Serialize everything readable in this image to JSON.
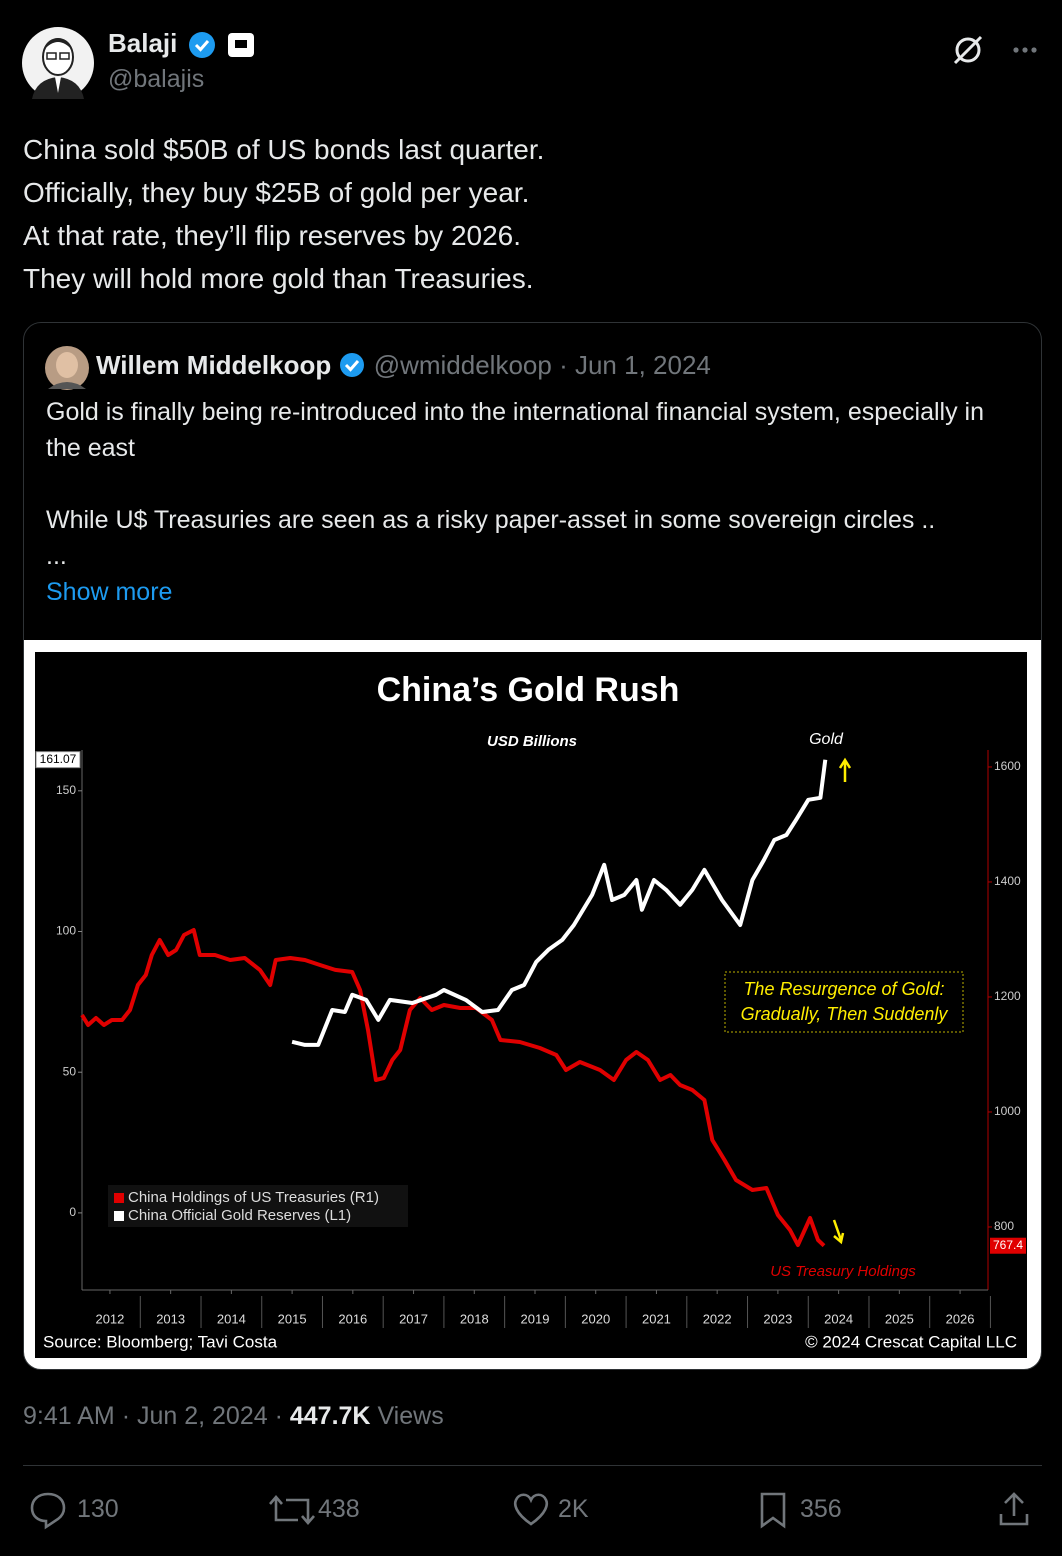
{
  "tweet": {
    "author": "Balaji",
    "handle": "@balajis",
    "text": [
      "China sold $50B of US bonds last quarter.",
      "Officially, they buy $25B of gold per year.",
      "At that rate, they’ll flip reserves by 2026.",
      "They will hold more gold than Treasuries."
    ],
    "time": "9:41 AM",
    "separator": "·",
    "date": "Jun 2, 2024",
    "views": "447.7K",
    "views_label": "Views",
    "replies": "130",
    "reposts": "438",
    "likes": "2K",
    "bookmarks": "356"
  },
  "quote": {
    "author": "Willem Middelkoop",
    "handle": "@wmiddelkoop",
    "date": "Jun 1, 2024",
    "text": [
      "Gold is finally being re-introduced into the international financial system, especially in the east",
      "While U$ Treasuries are seen as a risky paper-asset in some sovereign circles ..",
      "..."
    ],
    "show_more": "Show more"
  },
  "chart_data": {
    "type": "line",
    "title": "China’s Gold Rush",
    "subtitle": "USD Billions",
    "xlim": [
      2011.54,
      2026.46
    ],
    "xticks": [
      2012,
      2013,
      2014,
      2015,
      2016,
      2017,
      2018,
      2019,
      2020,
      2021,
      2022,
      2023,
      2024,
      2025,
      2026
    ],
    "ylim": [
      -27.4,
      164.5
    ],
    "yticks": [
      0,
      50,
      100,
      150
    ],
    "y_last": 161.07,
    "y2lim": [
      690.4,
      1629.5
    ],
    "y2ticks": [
      800,
      1000,
      1200,
      1400,
      1600
    ],
    "y2_last": 767.4,
    "legend": "lower left",
    "series": [
      {
        "name": "China Holdings of US Treasuries (R1)",
        "color": "#e00000",
        "axis": "y2",
        "x": [
          2011.54,
          2011.64,
          2011.77,
          2011.9,
          2012.03,
          2012.2,
          2012.33,
          2012.46,
          2012.59,
          2012.69,
          2012.82,
          2012.96,
          2013.09,
          2013.22,
          2013.38,
          2013.48,
          2013.73,
          2013.98,
          2014.22,
          2014.47,
          2014.64,
          2014.73,
          2014.97,
          2015.21,
          2015.46,
          2015.71,
          2015.99,
          2016.12,
          2016.25,
          2016.38,
          2016.51,
          2016.65,
          2016.78,
          2016.94,
          2017.11,
          2017.3,
          2017.5,
          2017.77,
          2018.03,
          2018.29,
          2018.43,
          2018.75,
          2019.08,
          2019.35,
          2019.51,
          2019.74,
          2020.07,
          2020.3,
          2020.5,
          2020.67,
          2020.86,
          2021.06,
          2021.23,
          2021.39,
          2021.59,
          2021.79,
          2021.92,
          2022.12,
          2022.31,
          2022.58,
          2022.81,
          2023.0,
          2023.2,
          2023.33,
          2023.53,
          2023.66,
          2023.76
        ],
        "values": [
          1168.7,
          1151.3,
          1163.5,
          1151.3,
          1160.0,
          1160.0,
          1177.4,
          1220.8,
          1238.2,
          1273.0,
          1299.1,
          1273.0,
          1281.7,
          1307.8,
          1316.5,
          1273.0,
          1273.0,
          1264.3,
          1267.8,
          1247.0,
          1220.8,
          1264.3,
          1267.8,
          1264.3,
          1255.6,
          1247.0,
          1243.5,
          1212.1,
          1142.6,
          1055.6,
          1059.1,
          1090.4,
          1107.8,
          1177.4,
          1198.2,
          1177.4,
          1186.1,
          1180.9,
          1180.9,
          1160.0,
          1125.2,
          1121.7,
          1111.3,
          1099.1,
          1073.0,
          1086.9,
          1073.0,
          1055.6,
          1090.4,
          1104.3,
          1090.4,
          1055.6,
          1064.3,
          1046.9,
          1038.2,
          1020.9,
          951.3,
          916.5,
          881.7,
          864.3,
          867.8,
          820.9,
          794.8,
          768.7,
          815.7,
          777.4,
          767.4
        ]
      },
      {
        "name": "China Official Gold Reserves (L1)",
        "color": "#ffffff",
        "axis": "y",
        "x": [
          2015.0,
          2015.21,
          2015.43,
          2015.66,
          2015.87,
          2015.99,
          2016.22,
          2016.42,
          2016.61,
          2016.98,
          2017.37,
          2017.5,
          2017.86,
          2018.13,
          2018.39,
          2018.62,
          2018.82,
          2019.02,
          2019.22,
          2019.45,
          2019.64,
          2019.94,
          2020.14,
          2020.27,
          2020.47,
          2020.67,
          2020.76,
          2020.96,
          2021.16,
          2021.39,
          2021.59,
          2021.79,
          2022.08,
          2022.38,
          2022.58,
          2022.77,
          2022.94,
          2023.14,
          2023.3,
          2023.5,
          2023.7,
          2023.78
        ],
        "values": [
          60.8,
          59.7,
          59.7,
          72.1,
          71.4,
          77.5,
          75.7,
          68.6,
          75.7,
          74.6,
          77.5,
          79.2,
          75.7,
          71.4,
          72.1,
          79.2,
          81.0,
          89.2,
          93.5,
          97.0,
          102.3,
          113.0,
          123.7,
          111.2,
          113.0,
          118.3,
          107.7,
          118.3,
          114.8,
          109.5,
          114.8,
          121.9,
          111.2,
          102.3,
          118.3,
          125.4,
          132.5,
          134.3,
          139.7,
          146.8,
          147.5,
          161.07
        ]
      }
    ],
    "gold_label": "Gold",
    "treasury_label": "US Treasury Holdings",
    "callout": [
      "The Resurgence of Gold:",
      "Gradually, Then Suddenly"
    ],
    "source": "Source: Bloomberg; Tavi Costa",
    "copyright": "© 2024 Crescat Capital LLC"
  }
}
